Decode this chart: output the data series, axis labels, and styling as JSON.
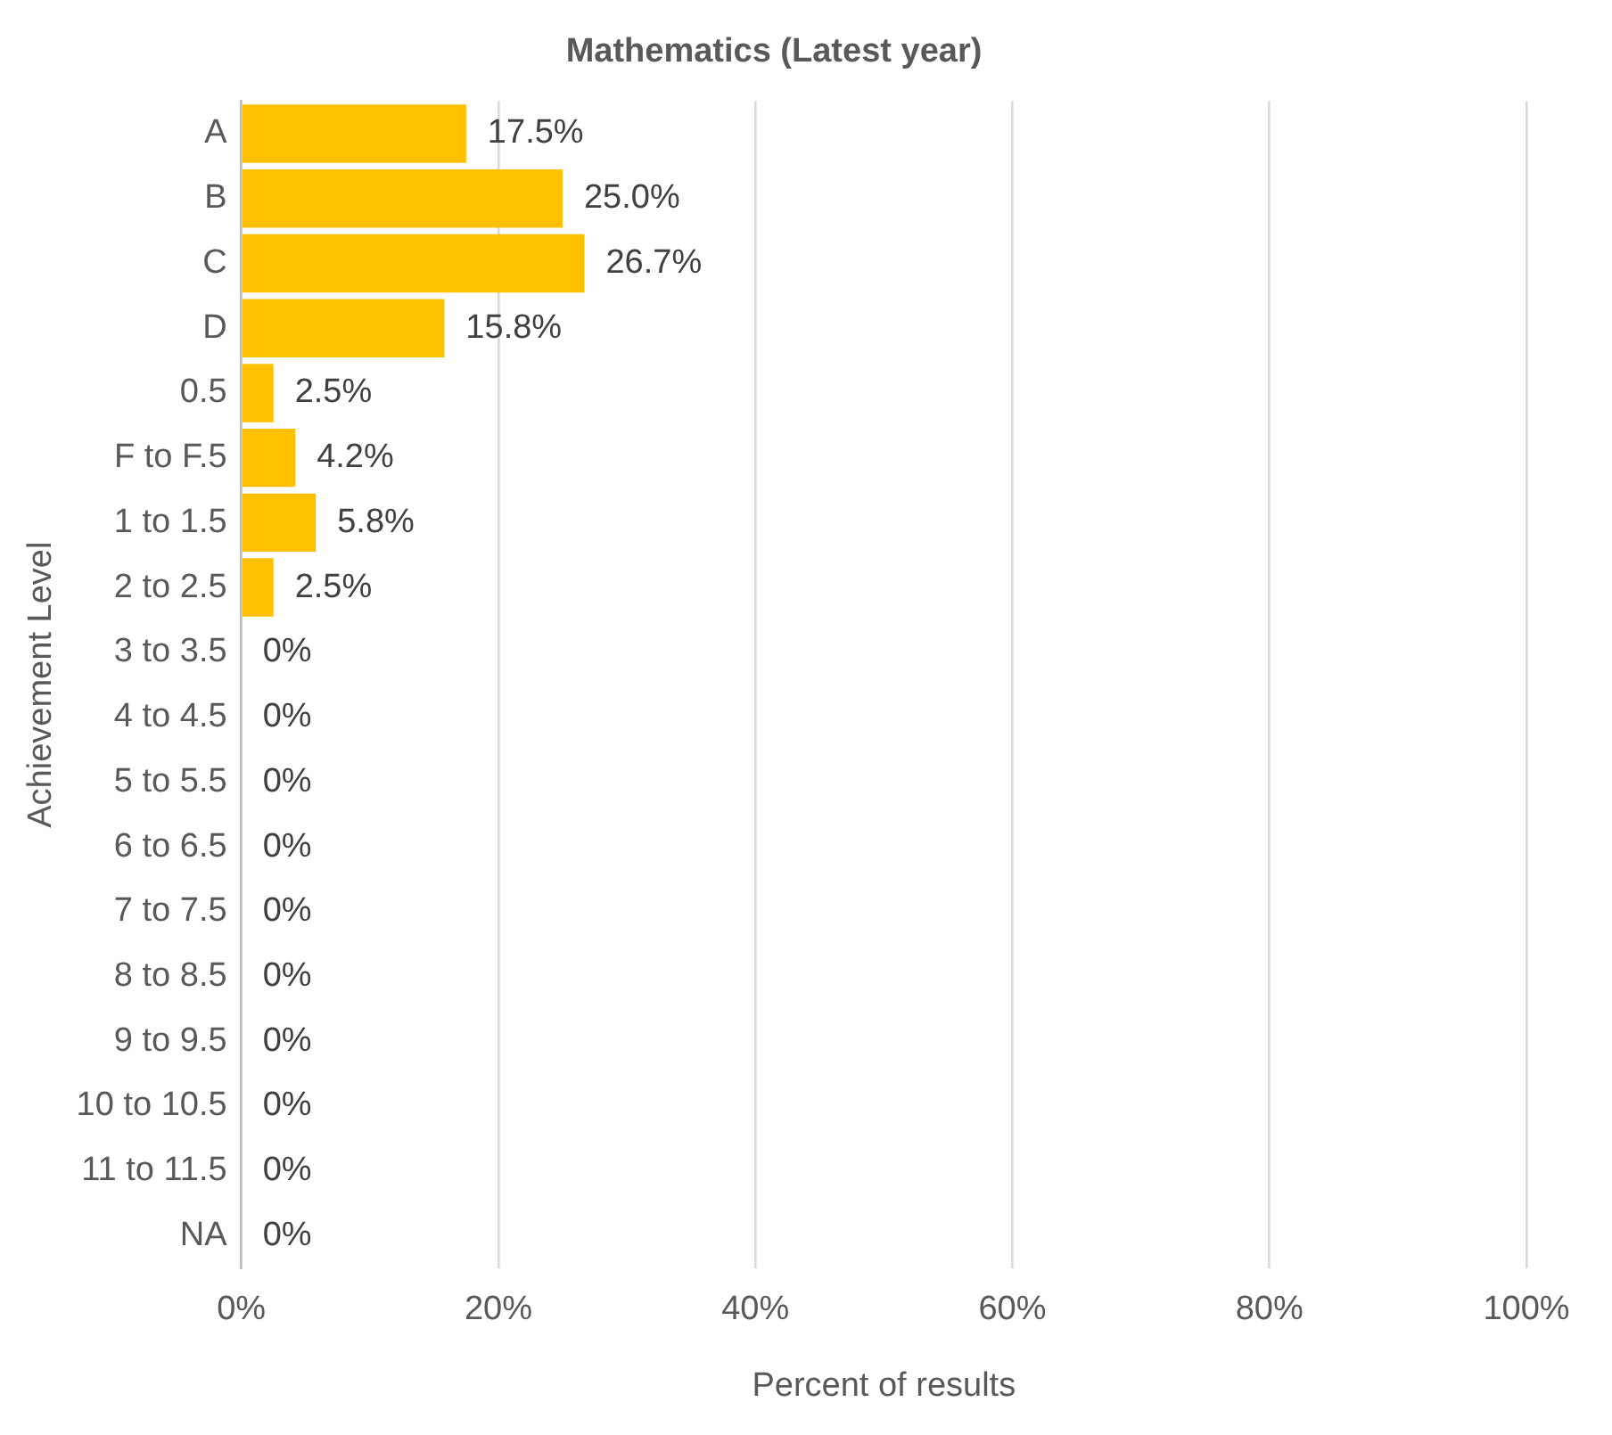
{
  "chart_data": {
    "type": "bar",
    "orientation": "horizontal",
    "title": "Mathematics (Latest year)",
    "xlabel": "Percent of results",
    "ylabel": "Achievement Level",
    "categories": [
      "A",
      "B",
      "C",
      "D",
      "0.5",
      "F to F.5",
      "1 to 1.5",
      "2 to 2.5",
      "3 to 3.5",
      "4 to 4.5",
      "5 to 5.5",
      "6 to 6.5",
      "7 to 7.5",
      "8 to 8.5",
      "9 to 9.5",
      "10 to 10.5",
      "11 to 11.5",
      "NA"
    ],
    "values": [
      17.5,
      25.0,
      26.7,
      15.8,
      2.5,
      4.2,
      5.8,
      2.5,
      0,
      0,
      0,
      0,
      0,
      0,
      0,
      0,
      0,
      0
    ],
    "value_labels": [
      "17.5%",
      "25.0%",
      "26.7%",
      "15.8%",
      "2.5%",
      "4.2%",
      "5.8%",
      "2.5%",
      "0%",
      "0%",
      "0%",
      "0%",
      "0%",
      "0%",
      "0%",
      "0%",
      "0%",
      "0%"
    ],
    "color": "#ffc000",
    "xlim": [
      0,
      100
    ],
    "xticks": [
      {
        "value": 0,
        "label": "0%"
      },
      {
        "value": 20,
        "label": "20%"
      },
      {
        "value": 40,
        "label": "40%"
      },
      {
        "value": 60,
        "label": "60%"
      },
      {
        "value": 80,
        "label": "80%"
      },
      {
        "value": 100,
        "label": "100%"
      }
    ],
    "grid": "x",
    "legend": false
  }
}
